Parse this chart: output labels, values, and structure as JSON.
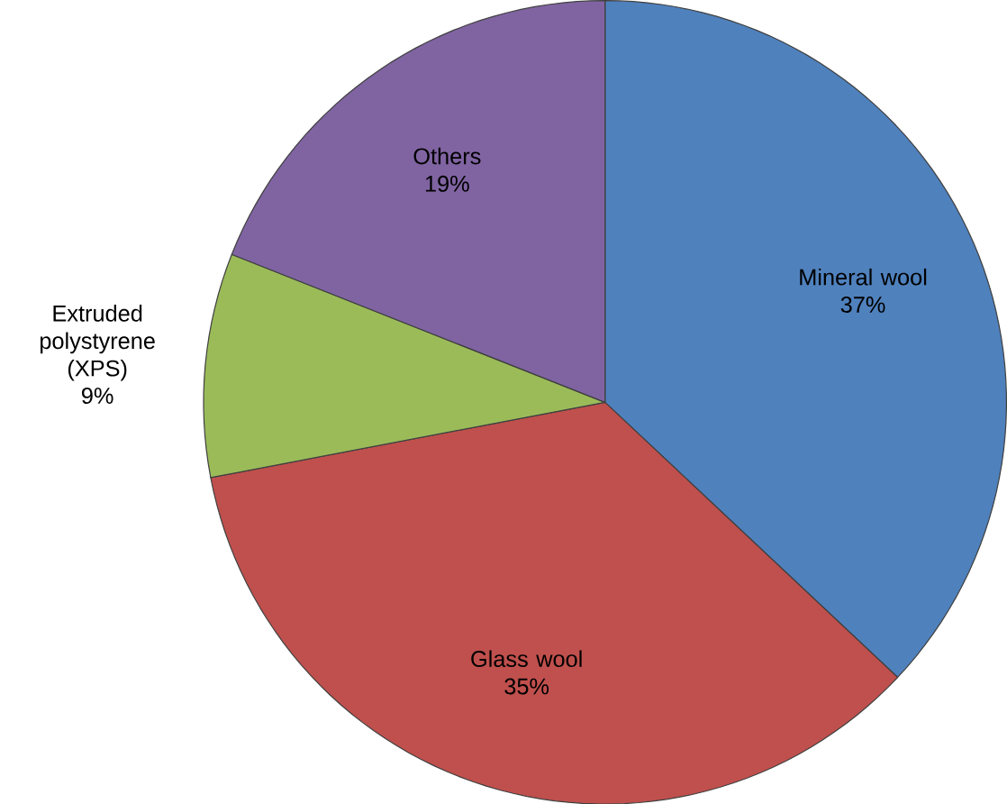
{
  "chart_data": {
    "type": "pie",
    "categories": [
      "Mineral wool",
      "Glass wool",
      "Extruded polystyrene (XPS)",
      "Others"
    ],
    "values": [
      37,
      35,
      9,
      19
    ],
    "value_labels": [
      "37%",
      "35%",
      "9%",
      "19%"
    ],
    "colors": [
      "#4f81bd",
      "#c0504d",
      "#9bbb59",
      "#8064a2"
    ]
  }
}
